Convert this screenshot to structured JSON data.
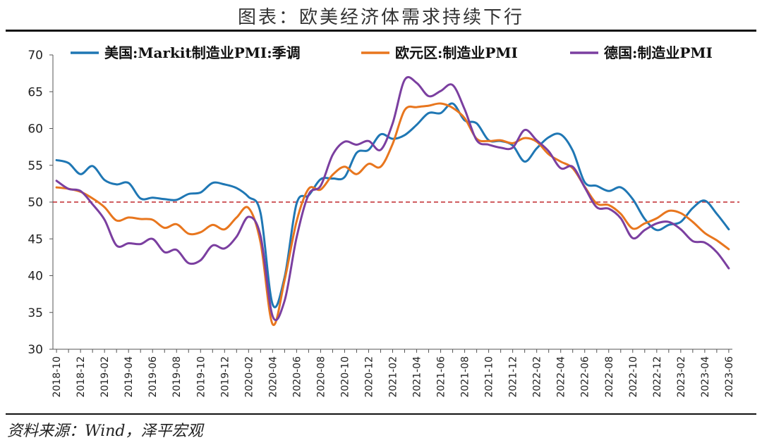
{
  "figure_title": "图表：欧美经济体需求持续下行",
  "source_note": "资料来源：Wind，泽平宏观",
  "chart_data": {
    "type": "line",
    "title": "图表：欧美经济体需求持续下行",
    "xlabel": "",
    "ylabel": "",
    "ylim": [
      30,
      70
    ],
    "yticks": [
      30,
      35,
      40,
      45,
      50,
      55,
      60,
      65,
      70
    ],
    "x": [
      "2018-10",
      "2018-11",
      "2018-12",
      "2019-01",
      "2019-02",
      "2019-03",
      "2019-04",
      "2019-05",
      "2019-06",
      "2019-07",
      "2019-08",
      "2019-09",
      "2019-10",
      "2019-11",
      "2019-12",
      "2020-01",
      "2020-02",
      "2020-03",
      "2020-04",
      "2020-05",
      "2020-06",
      "2020-07",
      "2020-08",
      "2020-09",
      "2020-10",
      "2020-11",
      "2020-12",
      "2021-01",
      "2021-02",
      "2021-03",
      "2021-04",
      "2021-05",
      "2021-06",
      "2021-07",
      "2021-08",
      "2021-09",
      "2021-10",
      "2021-11",
      "2021-12",
      "2022-01",
      "2022-02",
      "2022-03",
      "2022-04",
      "2022-05",
      "2022-06",
      "2022-07",
      "2022-08",
      "2022-09",
      "2022-10",
      "2022-11",
      "2022-12",
      "2023-01",
      "2023-02",
      "2023-03",
      "2023-04",
      "2023-05",
      "2023-06"
    ],
    "x_tick_labels": [
      "2018-10",
      "2018-12",
      "2019-02",
      "2019-04",
      "2019-06",
      "2019-08",
      "2019-10",
      "2019-12",
      "2020-02",
      "2020-04",
      "2020-06",
      "2020-08",
      "2020-10",
      "2020-12",
      "2021-02",
      "2021-04",
      "2021-06",
      "2021-08",
      "2021-10",
      "2021-12",
      "2022-02",
      "2022-04",
      "2022-06",
      "2022-08",
      "2022-10",
      "2022-12",
      "2023-02",
      "2023-04",
      "2023-06"
    ],
    "reference_line": {
      "y": 50,
      "color": "#c0282d",
      "style": "dashed"
    },
    "grid": false,
    "legend_position": "top",
    "series": [
      {
        "name": "美国:Markit制造业PMI:季调",
        "color": "#1f77b4",
        "values": [
          55.7,
          55.3,
          53.8,
          54.9,
          53.0,
          52.4,
          52.6,
          50.5,
          50.6,
          50.4,
          50.3,
          51.1,
          51.3,
          52.6,
          52.4,
          51.9,
          50.7,
          48.5,
          36.1,
          39.8,
          49.8,
          50.9,
          53.1,
          53.2,
          53.4,
          56.7,
          57.1,
          59.2,
          58.6,
          59.1,
          60.5,
          62.1,
          62.1,
          63.4,
          61.1,
          60.7,
          58.4,
          58.3,
          57.7,
          55.5,
          57.3,
          58.8,
          59.2,
          57.0,
          52.7,
          52.2,
          51.5,
          52.0,
          50.4,
          47.7,
          46.2,
          46.9,
          47.3,
          49.2,
          50.2,
          48.4,
          46.3
        ]
      },
      {
        "name": "欧元区:制造业PMI",
        "color": "#e8761e",
        "values": [
          52.0,
          51.8,
          51.4,
          50.5,
          49.3,
          47.5,
          47.9,
          47.7,
          47.6,
          46.5,
          47.0,
          45.7,
          45.9,
          46.9,
          46.3,
          47.9,
          49.2,
          44.5,
          33.4,
          39.4,
          47.4,
          51.8,
          51.7,
          53.7,
          54.8,
          53.8,
          55.2,
          54.8,
          57.9,
          62.5,
          62.9,
          63.1,
          63.4,
          62.8,
          61.4,
          58.6,
          58.3,
          58.4,
          58.0,
          58.7,
          58.2,
          56.5,
          55.5,
          54.6,
          52.1,
          49.8,
          49.6,
          48.4,
          46.4,
          47.1,
          47.8,
          48.8,
          48.5,
          47.3,
          45.8,
          44.8,
          43.6
        ]
      },
      {
        "name": "德国:制造业PMI",
        "color": "#7b3fa0",
        "values": [
          52.9,
          51.8,
          51.5,
          49.7,
          47.6,
          44.1,
          44.4,
          44.3,
          45.0,
          43.2,
          43.5,
          41.7,
          42.1,
          44.1,
          43.7,
          45.3,
          48.0,
          45.4,
          34.5,
          36.6,
          45.2,
          51.0,
          52.2,
          56.4,
          58.2,
          57.8,
          58.3,
          57.1,
          60.7,
          66.6,
          66.2,
          64.4,
          65.1,
          65.9,
          62.6,
          58.4,
          57.8,
          57.4,
          57.4,
          59.8,
          58.4,
          56.9,
          54.6,
          54.8,
          52.0,
          49.3,
          49.1,
          47.8,
          45.1,
          46.2,
          47.1,
          47.3,
          46.3,
          44.7,
          44.5,
          43.2,
          41.0
        ]
      }
    ]
  }
}
